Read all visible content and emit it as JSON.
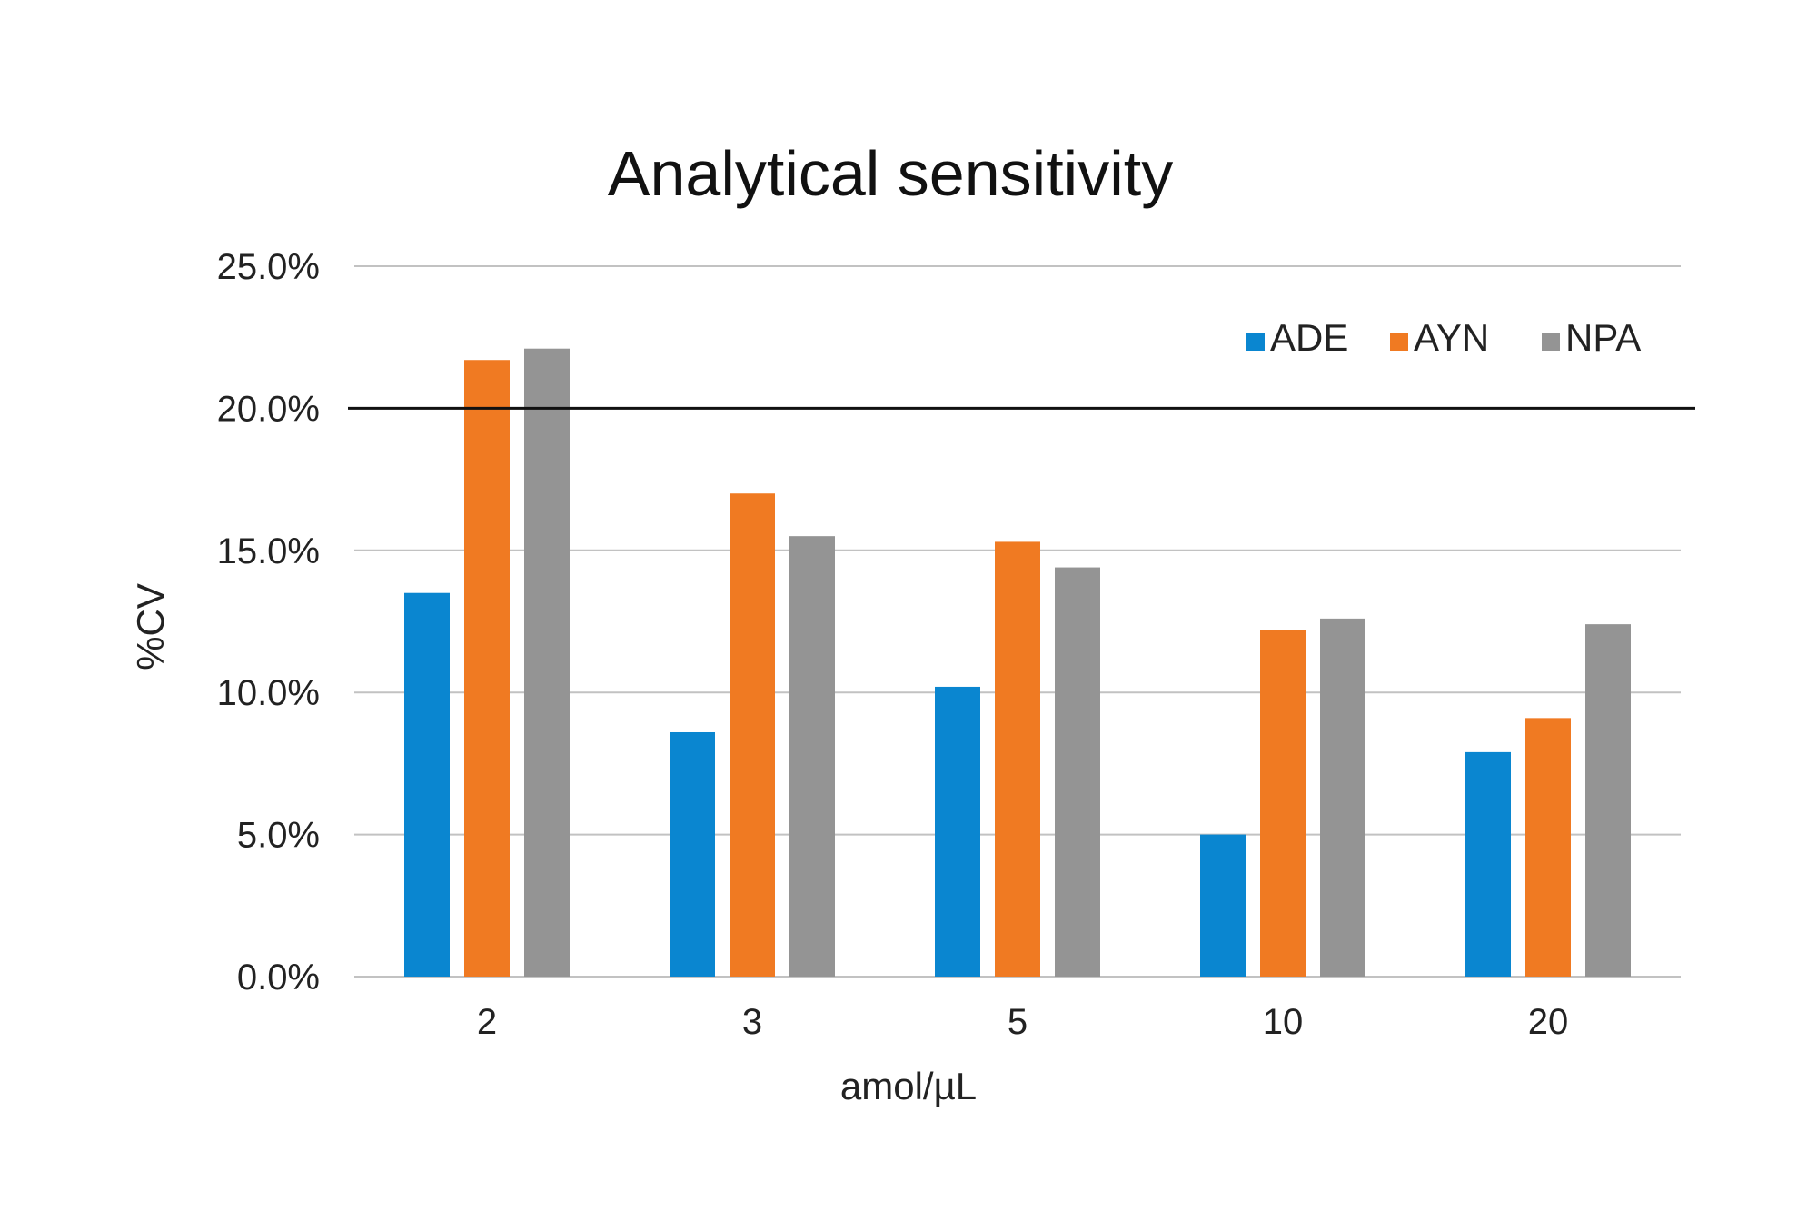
{
  "chart_data": {
    "type": "bar",
    "title": "Analytical sensitivity",
    "xlabel": "amol/µL",
    "ylabel": "%CV",
    "categories": [
      "2",
      "3",
      "5",
      "10",
      "20"
    ],
    "series": [
      {
        "name": "ADE",
        "color": "#0a86d0",
        "values": [
          13.5,
          8.6,
          10.2,
          5.0,
          7.9
        ]
      },
      {
        "name": "AYN",
        "color": "#f07a22",
        "values": [
          21.7,
          17.0,
          15.3,
          12.2,
          9.1
        ]
      },
      {
        "name": "NPA",
        "color": "#949494",
        "values": [
          22.1,
          15.5,
          14.4,
          12.6,
          12.4
        ]
      }
    ],
    "ylim": [
      0,
      25
    ],
    "yticks": [
      "0.0%",
      "5.0%",
      "10.0%",
      "15.0%",
      "20.0%",
      "25.0%"
    ],
    "ytick_values": [
      0,
      5,
      10,
      15,
      20,
      25
    ],
    "threshold": 20,
    "grid": true,
    "legend_position": "top-right"
  }
}
